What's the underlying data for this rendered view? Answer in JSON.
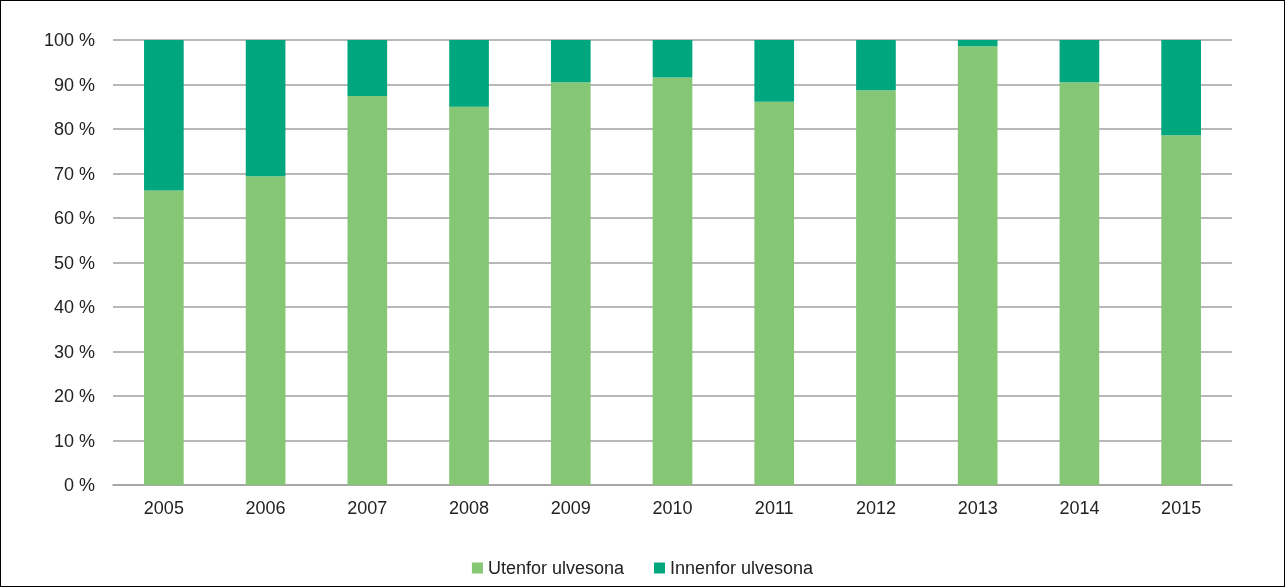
{
  "chart_data": {
    "type": "bar",
    "stacked": true,
    "categories": [
      "2005",
      "2006",
      "2007",
      "2008",
      "2009",
      "2010",
      "2011",
      "2012",
      "2013",
      "2014",
      "2015"
    ],
    "series": [
      {
        "name": "Utenfor ulvesona",
        "color": "#86c776",
        "values": [
          66.2,
          69.4,
          87.4,
          85,
          90.5,
          91.6,
          86.1,
          88.7,
          98.6,
          90.5,
          78.6
        ]
      },
      {
        "name": "Innenfor ulvesona",
        "color": "#00a67d",
        "values": [
          33.8,
          30.6,
          12.6,
          15,
          9.5,
          8.4,
          13.9,
          11.3,
          1.4,
          9.5,
          21.4
        ]
      }
    ],
    "ylim": [
      0,
      100
    ],
    "yticks": [
      {
        "value": 0,
        "label": "0 %"
      },
      {
        "value": 10,
        "label": "10 %"
      },
      {
        "value": 20,
        "label": "20 %"
      },
      {
        "value": 30,
        "label": "30 %"
      },
      {
        "value": 40,
        "label": "40 %"
      },
      {
        "value": 50,
        "label": "50 %"
      },
      {
        "value": 60,
        "label": "60 %"
      },
      {
        "value": 70,
        "label": "70 %"
      },
      {
        "value": 80,
        "label": "80 %"
      },
      {
        "value": 90,
        "label": "90 %"
      },
      {
        "value": 100,
        "label": "100 %"
      }
    ],
    "grid": "y",
    "legend": "bottom"
  }
}
